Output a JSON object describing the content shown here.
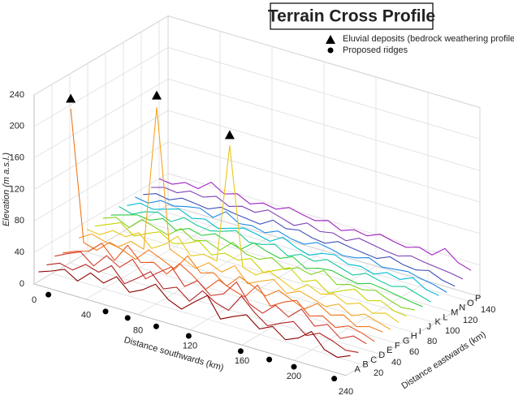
{
  "chart_data": {
    "type": "waterfall3d",
    "title": "Terrain Cross Profile",
    "x_label": "Distance southwards (km)",
    "y_label": "Distance eastwards (km)",
    "z_label": "Elevation (m a.s.l.)",
    "xlim": [
      0,
      240
    ],
    "ylim": [
      0,
      150
    ],
    "zlim": [
      0,
      240
    ],
    "xticks": [
      0,
      40,
      80,
      120,
      160,
      200,
      240
    ],
    "yticks": [
      20,
      40,
      60,
      80,
      100,
      120,
      140
    ],
    "zticks": [
      0,
      40,
      80,
      120,
      160,
      200,
      240
    ],
    "grid": true,
    "x": [
      0,
      10,
      20,
      30,
      40,
      50,
      60,
      70,
      80,
      90,
      100,
      110,
      120,
      130,
      140,
      150,
      160,
      170,
      180,
      190,
      200,
      210,
      220,
      230,
      240
    ],
    "series": [
      {
        "name": "A",
        "east": 5,
        "color": "#8b0000",
        "values": [
          12,
          18,
          25,
          15,
          30,
          22,
          35,
          20,
          28,
          40,
          25,
          18,
          32,
          45,
          20,
          28,
          35,
          22,
          30,
          18,
          25,
          38,
          20,
          15,
          22
        ]
      },
      {
        "name": "B",
        "east": 14,
        "color": "#b22222",
        "values": [
          15,
          22,
          18,
          30,
          25,
          38,
          20,
          32,
          45,
          28,
          35,
          22,
          40,
          30,
          25,
          48,
          32,
          20,
          28,
          35,
          22,
          30,
          25,
          18,
          20
        ]
      },
      {
        "name": "C",
        "east": 23,
        "color": "#d0392b",
        "values": [
          20,
          28,
          35,
          22,
          40,
          30,
          45,
          25,
          38,
          50,
          30,
          42,
          28,
          35,
          55,
          32,
          25,
          40,
          30,
          45,
          28,
          35,
          22,
          30,
          25
        ]
      },
      {
        "name": "D",
        "east": 32,
        "color": "#e8561f",
        "values": [
          18,
          25,
          30,
          45,
          28,
          52,
          35,
          40,
          30,
          48,
          38,
          25,
          42,
          35,
          30,
          50,
          28,
          38,
          45,
          30,
          35,
          25,
          32,
          28,
          22
        ]
      },
      {
        "name": "E",
        "east": 41,
        "color": "#f07818",
        "values": [
          195,
          30,
          25,
          40,
          35,
          28,
          45,
          38,
          30,
          52,
          35,
          40,
          28,
          45,
          38,
          30,
          42,
          35,
          28,
          40,
          30,
          35,
          25,
          30,
          28
        ]
      },
      {
        "name": "F",
        "east": 50,
        "color": "#f5a623",
        "values": [
          25,
          35,
          30,
          28,
          40,
          35,
          220,
          45,
          38,
          30,
          42,
          35,
          48,
          30,
          38,
          45,
          32,
          40,
          35,
          30,
          38,
          28,
          35,
          30,
          25
        ]
      },
      {
        "name": "G",
        "east": 59,
        "color": "#e8c81a",
        "values": [
          30,
          28,
          38,
          35,
          45,
          30,
          40,
          55,
          35,
          42,
          38,
          190,
          40,
          35,
          45,
          38,
          30,
          42,
          35,
          40,
          32,
          38,
          30,
          35,
          28
        ]
      },
      {
        "name": "H",
        "east": 68,
        "color": "#c8d400",
        "values": [
          28,
          35,
          42,
          30,
          38,
          45,
          35,
          40,
          48,
          35,
          42,
          38,
          45,
          32,
          40,
          48,
          35,
          42,
          30,
          38,
          45,
          35,
          40,
          32,
          30
        ]
      },
      {
        "name": "I",
        "east": 77,
        "color": "#7ed321",
        "values": [
          32,
          38,
          30,
          45,
          40,
          35,
          48,
          38,
          42,
          35,
          50,
          40,
          38,
          45,
          35,
          42,
          38,
          48,
          35,
          40,
          38,
          42,
          35,
          30,
          32
        ]
      },
      {
        "name": "J",
        "east": 86,
        "color": "#2ecc40",
        "values": [
          30,
          35,
          40,
          38,
          45,
          35,
          42,
          38,
          45,
          40,
          35,
          48,
          42,
          38,
          45,
          35,
          40,
          42,
          38,
          35,
          40,
          38,
          35,
          32,
          30
        ]
      },
      {
        "name": "K",
        "east": 95,
        "color": "#16c79a",
        "values": [
          35,
          30,
          38,
          42,
          35,
          45,
          40,
          38,
          42,
          48,
          38,
          40,
          45,
          35,
          42,
          38,
          45,
          40,
          35,
          42,
          38,
          35,
          40,
          35,
          30
        ]
      },
      {
        "name": "L",
        "east": 104,
        "color": "#00bcd4",
        "values": [
          30,
          38,
          35,
          40,
          45,
          38,
          42,
          35,
          40,
          45,
          42,
          38,
          48,
          40,
          35,
          42,
          45,
          38,
          40,
          35,
          42,
          38,
          45,
          35,
          32
        ]
      },
      {
        "name": "M",
        "east": 113,
        "color": "#1e88e5",
        "values": [
          35,
          32,
          40,
          38,
          42,
          45,
          38,
          50,
          40,
          42,
          38,
          45,
          40,
          38,
          45,
          42,
          38,
          40,
          45,
          38,
          40,
          42,
          38,
          35,
          30
        ]
      },
      {
        "name": "N",
        "east": 122,
        "color": "#3f51b5",
        "values": [
          32,
          38,
          35,
          42,
          40,
          38,
          45,
          42,
          40,
          38,
          48,
          42,
          45,
          40,
          38,
          45,
          42,
          40,
          38,
          45,
          40,
          38,
          42,
          35,
          32
        ]
      },
      {
        "name": "O",
        "east": 131,
        "color": "#7b3fb5",
        "values": [
          35,
          40,
          38,
          45,
          42,
          48,
          40,
          45,
          42,
          50,
          45,
          40,
          48,
          42,
          45,
          40,
          48,
          45,
          42,
          40,
          45,
          42,
          40,
          38,
          35
        ]
      },
      {
        "name": "P",
        "east": 140,
        "color": "#a020c0",
        "values": [
          40,
          38,
          45,
          42,
          55,
          45,
          50,
          42,
          48,
          45,
          52,
          48,
          45,
          50,
          42,
          48,
          45,
          52,
          48,
          45,
          50,
          45,
          58,
          45,
          40
        ]
      }
    ],
    "deposits": {
      "label": "Eluvial deposits (bedrock weathering profiles)",
      "points": [
        {
          "x": 0,
          "east": 41,
          "elevation": 208
        },
        {
          "x": 60,
          "east": 50,
          "elevation": 235
        },
        {
          "x": 110,
          "east": 59,
          "elevation": 203
        }
      ]
    },
    "ridges": {
      "label": "Proposed ridges",
      "x": [
        11,
        55,
        72,
        94,
        119,
        159,
        181,
        200,
        231
      ]
    }
  }
}
